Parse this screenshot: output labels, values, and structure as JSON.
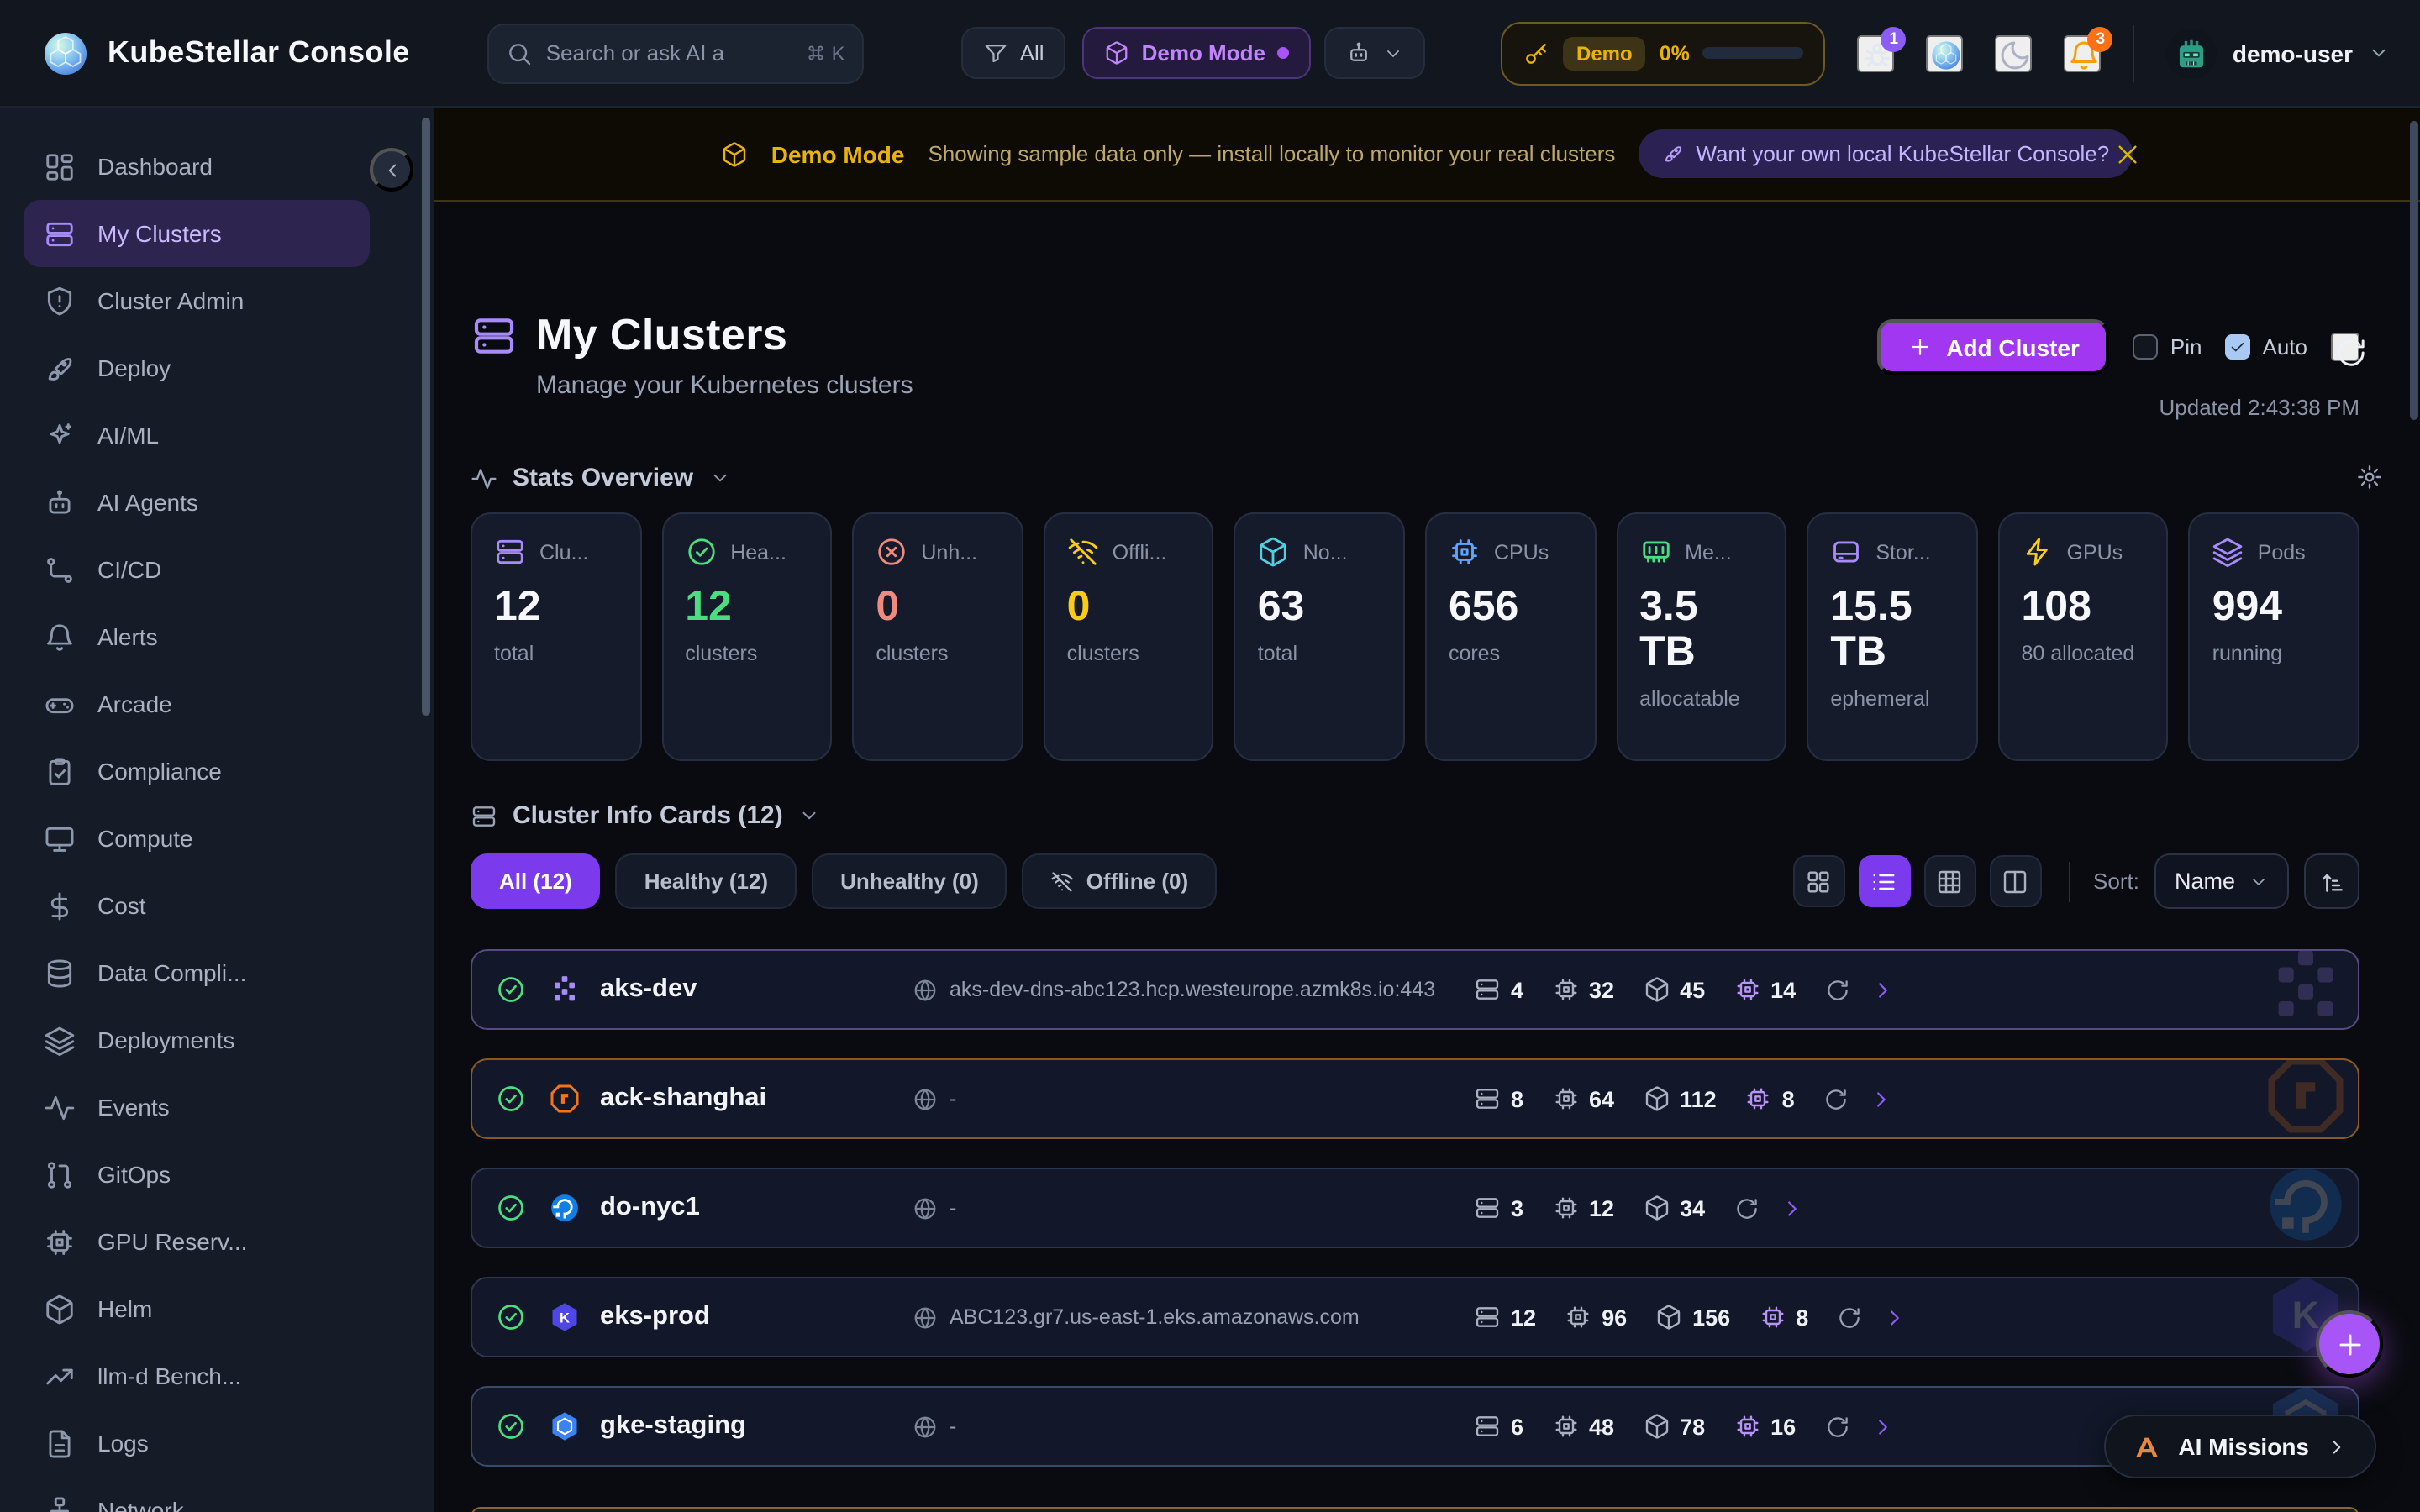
{
  "topbar": {
    "app_title": "KubeStellar Console",
    "logo_icon": "kubestellar-orb",
    "search": {
      "icon": "search-icon",
      "placeholder": "Search or ask AI a",
      "shortcut_icon": "command-icon",
      "shortcut_key": "K"
    },
    "filter": {
      "icon": "funnel-icon",
      "label": "All"
    },
    "demo_mode_pill": {
      "icon": "cube-icon",
      "label": "Demo Mode"
    },
    "agent_menu": {
      "icon": "bot-icon",
      "chevron_icon": "chevron-down-icon"
    },
    "usage_pill": {
      "icon": "key-icon",
      "chip": "Demo",
      "percent": "0%"
    },
    "bug": {
      "icon": "bug-icon",
      "badge": "1"
    },
    "orb_icon": "kubestellar-orb",
    "theme_icon": "moon-icon",
    "bell": {
      "icon": "bell-icon",
      "badge": "3"
    },
    "user": {
      "avatar_icon": "robot-avatar",
      "name": "demo-user",
      "chevron_icon": "chevron-down-icon"
    }
  },
  "banner": {
    "icon": "cube-icon",
    "title": "Demo Mode",
    "message": "Showing sample data only — install locally to monitor your real clusters",
    "cta": {
      "icon": "rocket-icon",
      "label": "Want your own local KubeStellar Console?"
    },
    "close_icon": "close-icon"
  },
  "sidebar": {
    "collapse_icon": "chevron-left-icon",
    "items": [
      {
        "label": "Dashboard",
        "icon": "dashboard-icon",
        "active": false
      },
      {
        "label": "My Clusters",
        "icon": "server-icon",
        "active": true
      },
      {
        "label": "Cluster Admin",
        "icon": "shield-alert-icon",
        "active": false
      },
      {
        "label": "Deploy",
        "icon": "rocket-icon",
        "active": false
      },
      {
        "label": "AI/ML",
        "icon": "sparkles-icon",
        "active": false
      },
      {
        "label": "AI Agents",
        "icon": "bot-icon",
        "active": false
      },
      {
        "label": "CI/CD",
        "icon": "workflow-icon",
        "active": false
      },
      {
        "label": "Alerts",
        "icon": "bell-icon",
        "active": false
      },
      {
        "label": "Arcade",
        "icon": "gamepad-icon",
        "active": false
      },
      {
        "label": "Compliance",
        "icon": "clipboard-check-icon",
        "active": false
      },
      {
        "label": "Compute",
        "icon": "monitor-icon",
        "active": false
      },
      {
        "label": "Cost",
        "icon": "dollar-icon",
        "active": false
      },
      {
        "label": "Data Compli...",
        "icon": "database-icon",
        "active": false
      },
      {
        "label": "Deployments",
        "icon": "layers-icon",
        "active": false
      },
      {
        "label": "Events",
        "icon": "activity-icon",
        "active": false
      },
      {
        "label": "GitOps",
        "icon": "git-icon",
        "active": false
      },
      {
        "label": "GPU Reserv...",
        "icon": "chip-icon",
        "active": false
      },
      {
        "label": "Helm",
        "icon": "cube-icon",
        "active": false
      },
      {
        "label": "llm-d Bench...",
        "icon": "trending-up-icon",
        "active": false
      },
      {
        "label": "Logs",
        "icon": "file-text-icon",
        "active": false
      },
      {
        "label": "Network",
        "icon": "network-icon",
        "active": false
      }
    ]
  },
  "page": {
    "title_icon": "server-icon",
    "title": "My Clusters",
    "subtitle": "Manage your Kubernetes clusters",
    "add_button": {
      "icon": "plus-icon",
      "label": "Add Cluster"
    },
    "pin": {
      "label": "Pin",
      "checked": false
    },
    "auto": {
      "label": "Auto",
      "checked": true
    },
    "refresh_icon": "refresh-icon",
    "updated": "Updated 2:43:38 PM"
  },
  "stats": {
    "title_icon": "activity-icon",
    "title": "Stats Overview",
    "chevron_icon": "chevron-down-icon",
    "settings_icon": "gear-icon",
    "cards": [
      {
        "icon": "server-icon",
        "color": "#a78bfa",
        "label": "Clu...",
        "value": "12",
        "value_color": "#f5f7fa",
        "sub": "total"
      },
      {
        "icon": "check-circle-icon",
        "color": "#4ade80",
        "label": "Hea...",
        "value": "12",
        "value_color": "#4ade80",
        "sub": "clusters"
      },
      {
        "icon": "x-circle-icon",
        "color": "#ef8a80",
        "label": "Unh...",
        "value": "0",
        "value_color": "#ef8a80",
        "sub": "clusters"
      },
      {
        "icon": "wifi-off-icon",
        "color": "#facc15",
        "label": "Offli...",
        "value": "0",
        "value_color": "#facc15",
        "sub": "clusters"
      },
      {
        "icon": "cube-icon",
        "color": "#4dd0e1",
        "label": "No...",
        "value": "63",
        "value_color": "#f5f7fa",
        "sub": "total"
      },
      {
        "icon": "chip-icon",
        "color": "#60a5fa",
        "label": "CPUs",
        "value": "656",
        "value_color": "#f5f7fa",
        "sub": "cores"
      },
      {
        "icon": "memory-icon",
        "color": "#4ade80",
        "label": "Me...",
        "value": "3.5 TB",
        "value_color": "#f5f7fa",
        "sub": "allocatable"
      },
      {
        "icon": "hard-drive-icon",
        "color": "#a78bfa",
        "label": "Stor...",
        "value": "15.5 TB",
        "value_color": "#f5f7fa",
        "sub": "ephemeral"
      },
      {
        "icon": "zap-icon",
        "color": "#facc15",
        "label": "GPUs",
        "value": "108",
        "value_color": "#f5f7fa",
        "sub": "80 allocated"
      },
      {
        "icon": "layers-icon",
        "color": "#a78bfa",
        "label": "Pods",
        "value": "994",
        "value_color": "#f5f7fa",
        "sub": "running"
      }
    ]
  },
  "cluster_section": {
    "title_icon": "server-icon",
    "title": "Cluster Info Cards (12)",
    "chevron_icon": "chevron-down-icon",
    "tabs": [
      {
        "label": "All (12)",
        "active": true
      },
      {
        "label": "Healthy (12)",
        "active": false
      },
      {
        "label": "Unhealthy (0)",
        "active": false
      },
      {
        "label": "Offline (0)",
        "active": false,
        "icon": "wifi-off-icon"
      }
    ],
    "view_toggles": [
      {
        "icon": "grid-icon",
        "active": false
      },
      {
        "icon": "list-icon",
        "active": true
      },
      {
        "icon": "table-icon",
        "active": false
      },
      {
        "icon": "columns-icon",
        "active": false
      }
    ],
    "sort": {
      "label": "Sort:",
      "value": "Name",
      "direction_icon": "sort-asc-icon"
    },
    "rows": [
      {
        "status_icon": "check-circle-icon",
        "provider": "aks",
        "name": "aks-dev",
        "endpoint": "aks-dev-dns-abc123.hcp.westeurope.azmk8s.io:443",
        "nodes": "4",
        "cpus": "32",
        "pods": "45",
        "gpus": "14",
        "accent": "#584a80"
      },
      {
        "status_icon": "check-circle-icon",
        "provider": "ack",
        "name": "ack-shanghai",
        "endpoint": "-",
        "nodes": "8",
        "cpus": "64",
        "pods": "112",
        "gpus": "8",
        "accent": "#8a5a22"
      },
      {
        "status_icon": "check-circle-icon",
        "provider": "do",
        "name": "do-nyc1",
        "endpoint": "-",
        "nodes": "3",
        "cpus": "12",
        "pods": "34",
        "gpus": "",
        "accent": "#2e3850"
      },
      {
        "status_icon": "check-circle-icon",
        "provider": "eks",
        "name": "eks-prod",
        "endpoint": "ABC123.gr7.us-east-1.eks.amazonaws.com",
        "nodes": "12",
        "cpus": "96",
        "pods": "156",
        "gpus": "8",
        "accent": "#2e3850"
      },
      {
        "status_icon": "check-circle-icon",
        "provider": "gke",
        "name": "gke-staging",
        "endpoint": "-",
        "nodes": "6",
        "cpus": "48",
        "pods": "78",
        "gpus": "16",
        "accent": "#3a4a6b"
      }
    ]
  },
  "floating": {
    "fab_icon": "plus-icon",
    "ai_missions": {
      "logo_icon": "a-logo-icon",
      "label": "AI Missions",
      "chevron_icon": "chevron-right-icon"
    }
  },
  "colors": {
    "accent_purple": "#8b5cf6",
    "add_button_purple": "#a137f0",
    "active_tab_purple": "#7c3aed",
    "demo_yellow": "#eab308",
    "healthy_green": "#4ade80",
    "unhealthy_red": "#ef8a80",
    "nodes_cyan": "#4dd0e1",
    "cpu_blue": "#60a5fa",
    "bell_badge_orange": "#f97316",
    "bug_badge_purple": "#8b5cf6"
  }
}
